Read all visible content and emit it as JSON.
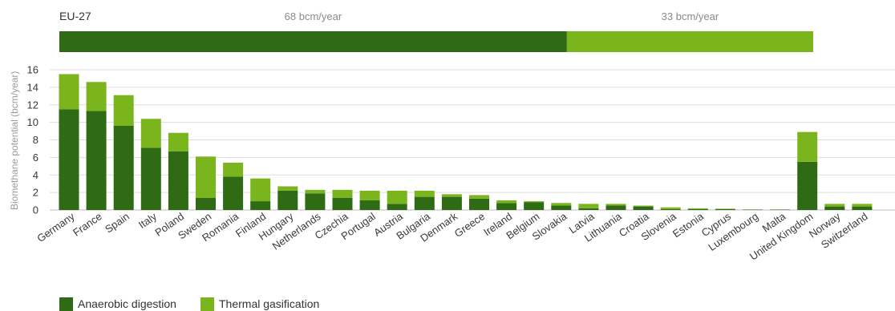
{
  "chart_data": {
    "type": "bar",
    "stacked": true,
    "ylabel": "Biomethane potential (bcm/year)",
    "ylim": [
      0,
      16
    ],
    "yticks": [
      0,
      2,
      4,
      6,
      8,
      10,
      12,
      14,
      16
    ],
    "grid": true,
    "legend_position": "bottom-left",
    "categories": [
      "Germany",
      "France",
      "Spain",
      "Italy",
      "Poland",
      "Sweden",
      "Romania",
      "Finland",
      "Hungary",
      "Netherlands",
      "Czechia",
      "Portugal",
      "Austria",
      "Bulgaria",
      "Denmark",
      "Greece",
      "Ireland",
      "Belgium",
      "Slovakia",
      "Latvia",
      "Lithuania",
      "Croatia",
      "Slovenia",
      "Estonia",
      "Cyprus",
      "Luxembourg",
      "Malta",
      "United Kingdom",
      "Norway",
      "Switzerland"
    ],
    "series": [
      {
        "name": "Anaerobic digestion",
        "color": "#2e6b14",
        "values": [
          11.5,
          11.3,
          9.6,
          7.1,
          6.7,
          1.4,
          3.8,
          1.0,
          2.2,
          1.9,
          1.4,
          1.1,
          0.7,
          1.5,
          1.5,
          1.3,
          0.8,
          0.9,
          0.5,
          0.2,
          0.5,
          0.4,
          0.1,
          0.1,
          0.1,
          0.05,
          0.05,
          5.5,
          0.4,
          0.4
        ]
      },
      {
        "name": "Thermal gasification",
        "color": "#7ab51d",
        "values": [
          4.0,
          3.3,
          3.5,
          3.3,
          2.1,
          4.7,
          1.6,
          2.6,
          0.5,
          0.4,
          0.9,
          1.1,
          1.5,
          0.7,
          0.3,
          0.4,
          0.3,
          0.1,
          0.3,
          0.5,
          0.2,
          0.1,
          0.2,
          0.1,
          0.05,
          0.0,
          0.0,
          3.4,
          0.3,
          0.3
        ]
      }
    ],
    "eu27": {
      "label": "EU-27",
      "segments": [
        {
          "name": "Anaerobic digestion",
          "value": 68,
          "text": "68 bcm/year",
          "color": "#2e6b14"
        },
        {
          "name": "Thermal gasification",
          "value": 33,
          "text": "33 bcm/year",
          "color": "#7ab51d"
        }
      ]
    }
  }
}
